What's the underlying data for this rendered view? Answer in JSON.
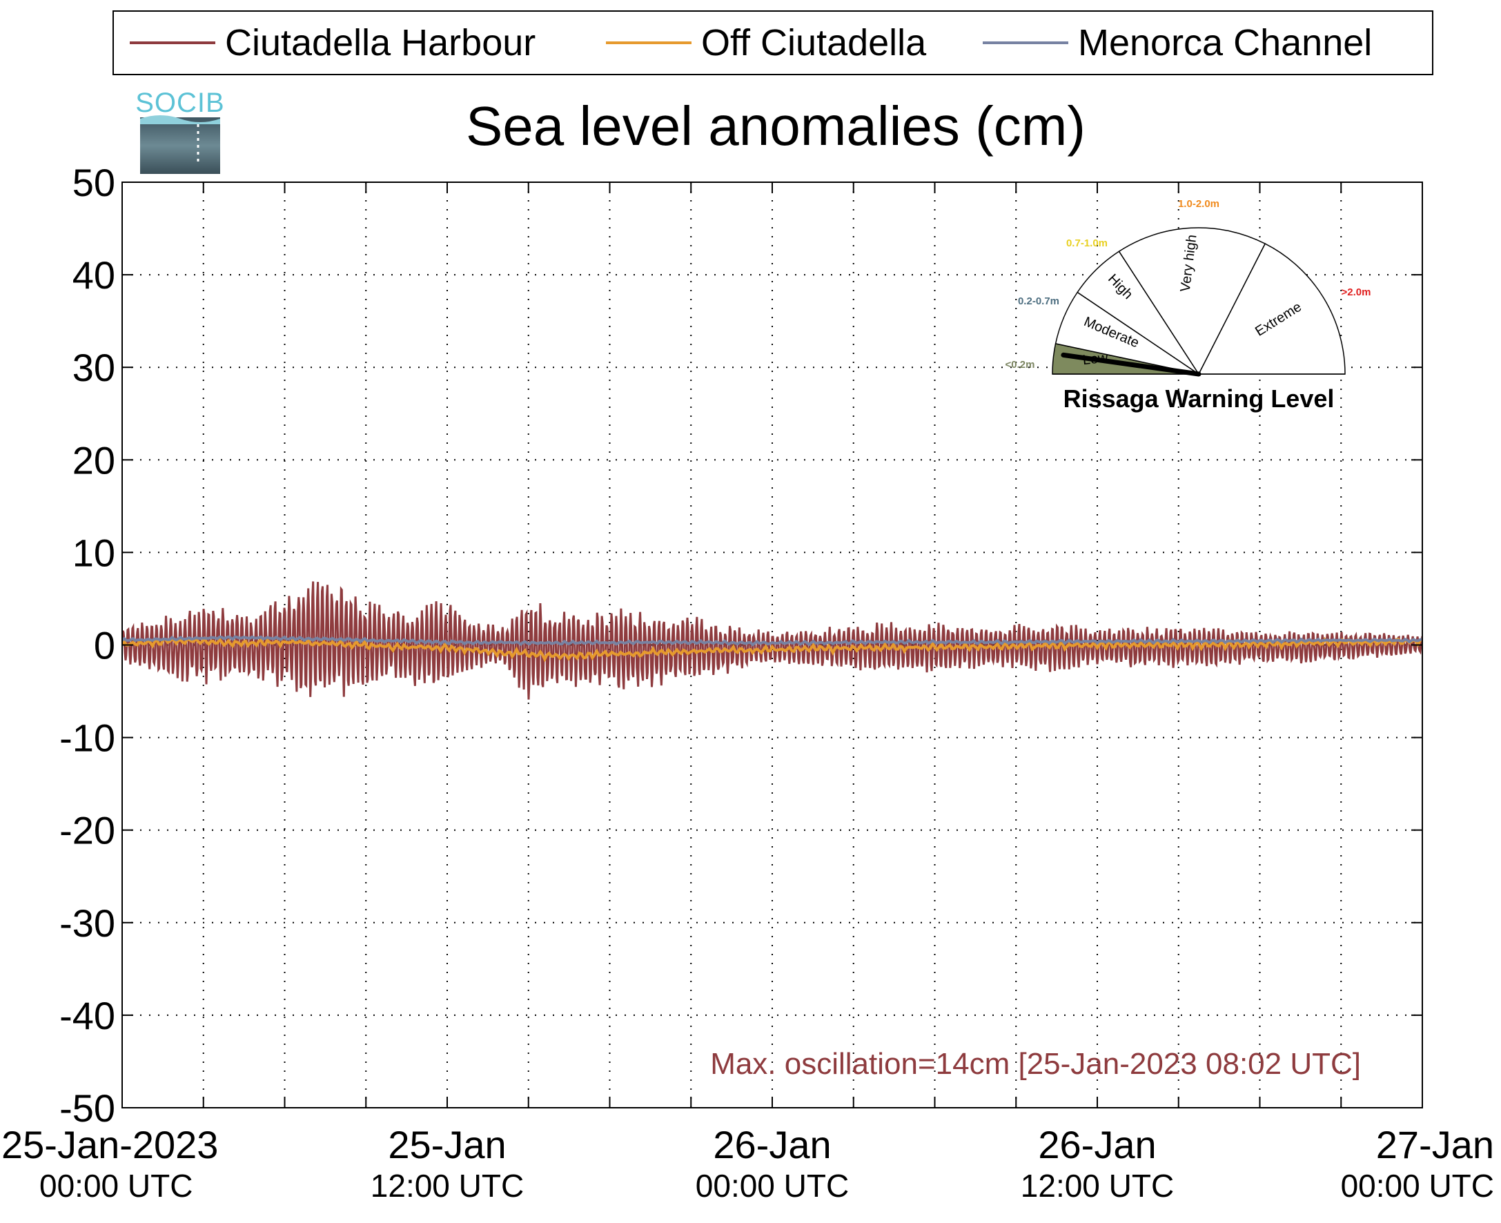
{
  "chart_data": {
    "type": "line",
    "title": "Sea level anomalies (cm)",
    "xlabel": "",
    "ylabel": "",
    "ylim": [
      -50,
      50
    ],
    "yticks": [
      -50,
      -40,
      -30,
      -20,
      -10,
      0,
      10,
      20,
      30,
      40,
      50
    ],
    "xlim": [
      "2023-01-25T00:00",
      "2023-01-27T00:00"
    ],
    "x_tick_labels": [
      {
        "x": "2023-01-25T00:00",
        "line1": "25-Jan-2023",
        "line2": "00:00 UTC"
      },
      {
        "x": "2023-01-25T12:00",
        "line1": "25-Jan",
        "line2": "12:00 UTC"
      },
      {
        "x": "2023-01-26T00:00",
        "line1": "26-Jan",
        "line2": "00:00 UTC"
      },
      {
        "x": "2023-01-26T12:00",
        "line1": "26-Jan",
        "line2": "12:00 UTC"
      },
      {
        "x": "2023-01-27T00:00",
        "line1": "27-Jan",
        "line2": "00:00 UTC"
      }
    ],
    "x_minor_ticks": [
      "2023-01-25T03:00",
      "2023-01-25T06:00",
      "2023-01-25T09:00",
      "2023-01-25T15:00",
      "2023-01-25T18:00",
      "2023-01-25T21:00",
      "2023-01-26T03:00",
      "2023-01-26T06:00",
      "2023-01-26T09:00",
      "2023-01-26T15:00",
      "2023-01-26T18:00",
      "2023-01-26T21:00"
    ],
    "grid": true,
    "legend_position": "top",
    "series": [
      {
        "name": "Ciutadella Harbour",
        "color": "#8e3b3e",
        "envelope": {
          "x": [
            "2023-01-25T00:00",
            "2023-01-25T01:00",
            "2023-01-25T02:00",
            "2023-01-25T03:00",
            "2023-01-25T04:00",
            "2023-01-25T05:00",
            "2023-01-25T06:00",
            "2023-01-25T07:00",
            "2023-01-25T08:00",
            "2023-01-25T09:00",
            "2023-01-25T10:00",
            "2023-01-25T11:00",
            "2023-01-25T12:00",
            "2023-01-25T13:00",
            "2023-01-25T14:00",
            "2023-01-25T15:00",
            "2023-01-25T16:00",
            "2023-01-25T17:00",
            "2023-01-25T18:00",
            "2023-01-25T19:00",
            "2023-01-25T20:00",
            "2023-01-25T21:00",
            "2023-01-25T22:00",
            "2023-01-25T23:00",
            "2023-01-26T00:00",
            "2023-01-26T02:00",
            "2023-01-26T04:00",
            "2023-01-26T06:00",
            "2023-01-26T08:00",
            "2023-01-26T10:00",
            "2023-01-26T12:00",
            "2023-01-26T14:00",
            "2023-01-26T16:00",
            "2023-01-26T18:00",
            "2023-01-26T20:00",
            "2023-01-26T22:00",
            "2023-01-27T00:00"
          ],
          "max": [
            2,
            3,
            3.5,
            4.5,
            4,
            3.5,
            6.5,
            7,
            7.5,
            5,
            4,
            4.5,
            5,
            3,
            2,
            5.5,
            4,
            4,
            4,
            4,
            3.5,
            3.5,
            2.5,
            2,
            1.5,
            2,
            2.5,
            2.5,
            2,
            2.5,
            2,
            2,
            2,
            1.5,
            1.5,
            1.5,
            1
          ],
          "min": [
            -2,
            -3,
            -4,
            -4.5,
            -4,
            -4,
            -5.5,
            -6,
            -6,
            -5,
            -4,
            -5,
            -4.5,
            -3,
            -2,
            -6.5,
            -4.5,
            -5,
            -5,
            -5.5,
            -4.5,
            -4,
            -3.5,
            -2.5,
            -2,
            -2.5,
            -3,
            -3,
            -2.5,
            -3,
            -2.5,
            -2.5,
            -2.5,
            -2,
            -2,
            -1.5,
            -1
          ]
        }
      },
      {
        "name": "Off Ciutadella",
        "color": "#e69a2e",
        "x": [
          "2023-01-25T00:00",
          "2023-01-25T02:00",
          "2023-01-25T04:00",
          "2023-01-25T06:00",
          "2023-01-25T08:00",
          "2023-01-25T10:00",
          "2023-01-25T12:00",
          "2023-01-25T14:00",
          "2023-01-25T16:00",
          "2023-01-25T18:00",
          "2023-01-25T20:00",
          "2023-01-25T22:00",
          "2023-01-26T00:00",
          "2023-01-26T04:00",
          "2023-01-26T08:00",
          "2023-01-26T12:00",
          "2023-01-26T16:00",
          "2023-01-26T20:00",
          "2023-01-27T00:00"
        ],
        "values": [
          0,
          0.5,
          0.2,
          0.3,
          0.1,
          -0.2,
          -0.3,
          -0.8,
          -1.2,
          -1,
          -0.8,
          -0.6,
          -0.5,
          -0.3,
          -0.2,
          0,
          0,
          0.2,
          0.4
        ]
      },
      {
        "name": "Menorca Channel",
        "color": "#7782a2",
        "x": [
          "2023-01-25T00:00",
          "2023-01-25T04:00",
          "2023-01-25T08:00",
          "2023-01-25T12:00",
          "2023-01-25T16:00",
          "2023-01-25T20:00",
          "2023-01-26T00:00",
          "2023-01-26T04:00",
          "2023-01-26T08:00",
          "2023-01-26T12:00",
          "2023-01-26T16:00",
          "2023-01-26T20:00",
          "2023-01-27T00:00"
        ],
        "values": [
          0.5,
          0.8,
          0.6,
          0.3,
          0.2,
          0.3,
          0.2,
          0.3,
          0.3,
          0.4,
          0.4,
          0.5,
          0.5
        ]
      }
    ],
    "annotations": [
      {
        "text": "Max. oscillation=14cm [25-Jan-2023 08:02 UTC]",
        "color": "#8e3b3e",
        "position": "bottom-right"
      }
    ]
  },
  "logo": {
    "text": "SOCIB"
  },
  "gauge": {
    "title": "Rissaga Warning Level",
    "current_level": "Low",
    "segments": [
      {
        "label": "Low",
        "range": "<0.2m",
        "range_color": "#7a8460",
        "active": true
      },
      {
        "label": "Moderate",
        "range": "0.2-0.7m",
        "range_color": "#4d6e80",
        "active": false
      },
      {
        "label": "High",
        "range": "0.7-1.0m",
        "range_color": "#e8d020",
        "active": false
      },
      {
        "label": "Very high",
        "range": "1.0-2.0m",
        "range_color": "#f08a1c",
        "active": false
      },
      {
        "label": "Extreme",
        "range": ">2.0m",
        "range_color": "#e01e1e",
        "active": false
      }
    ],
    "active_fill": "#7e8a5e"
  }
}
